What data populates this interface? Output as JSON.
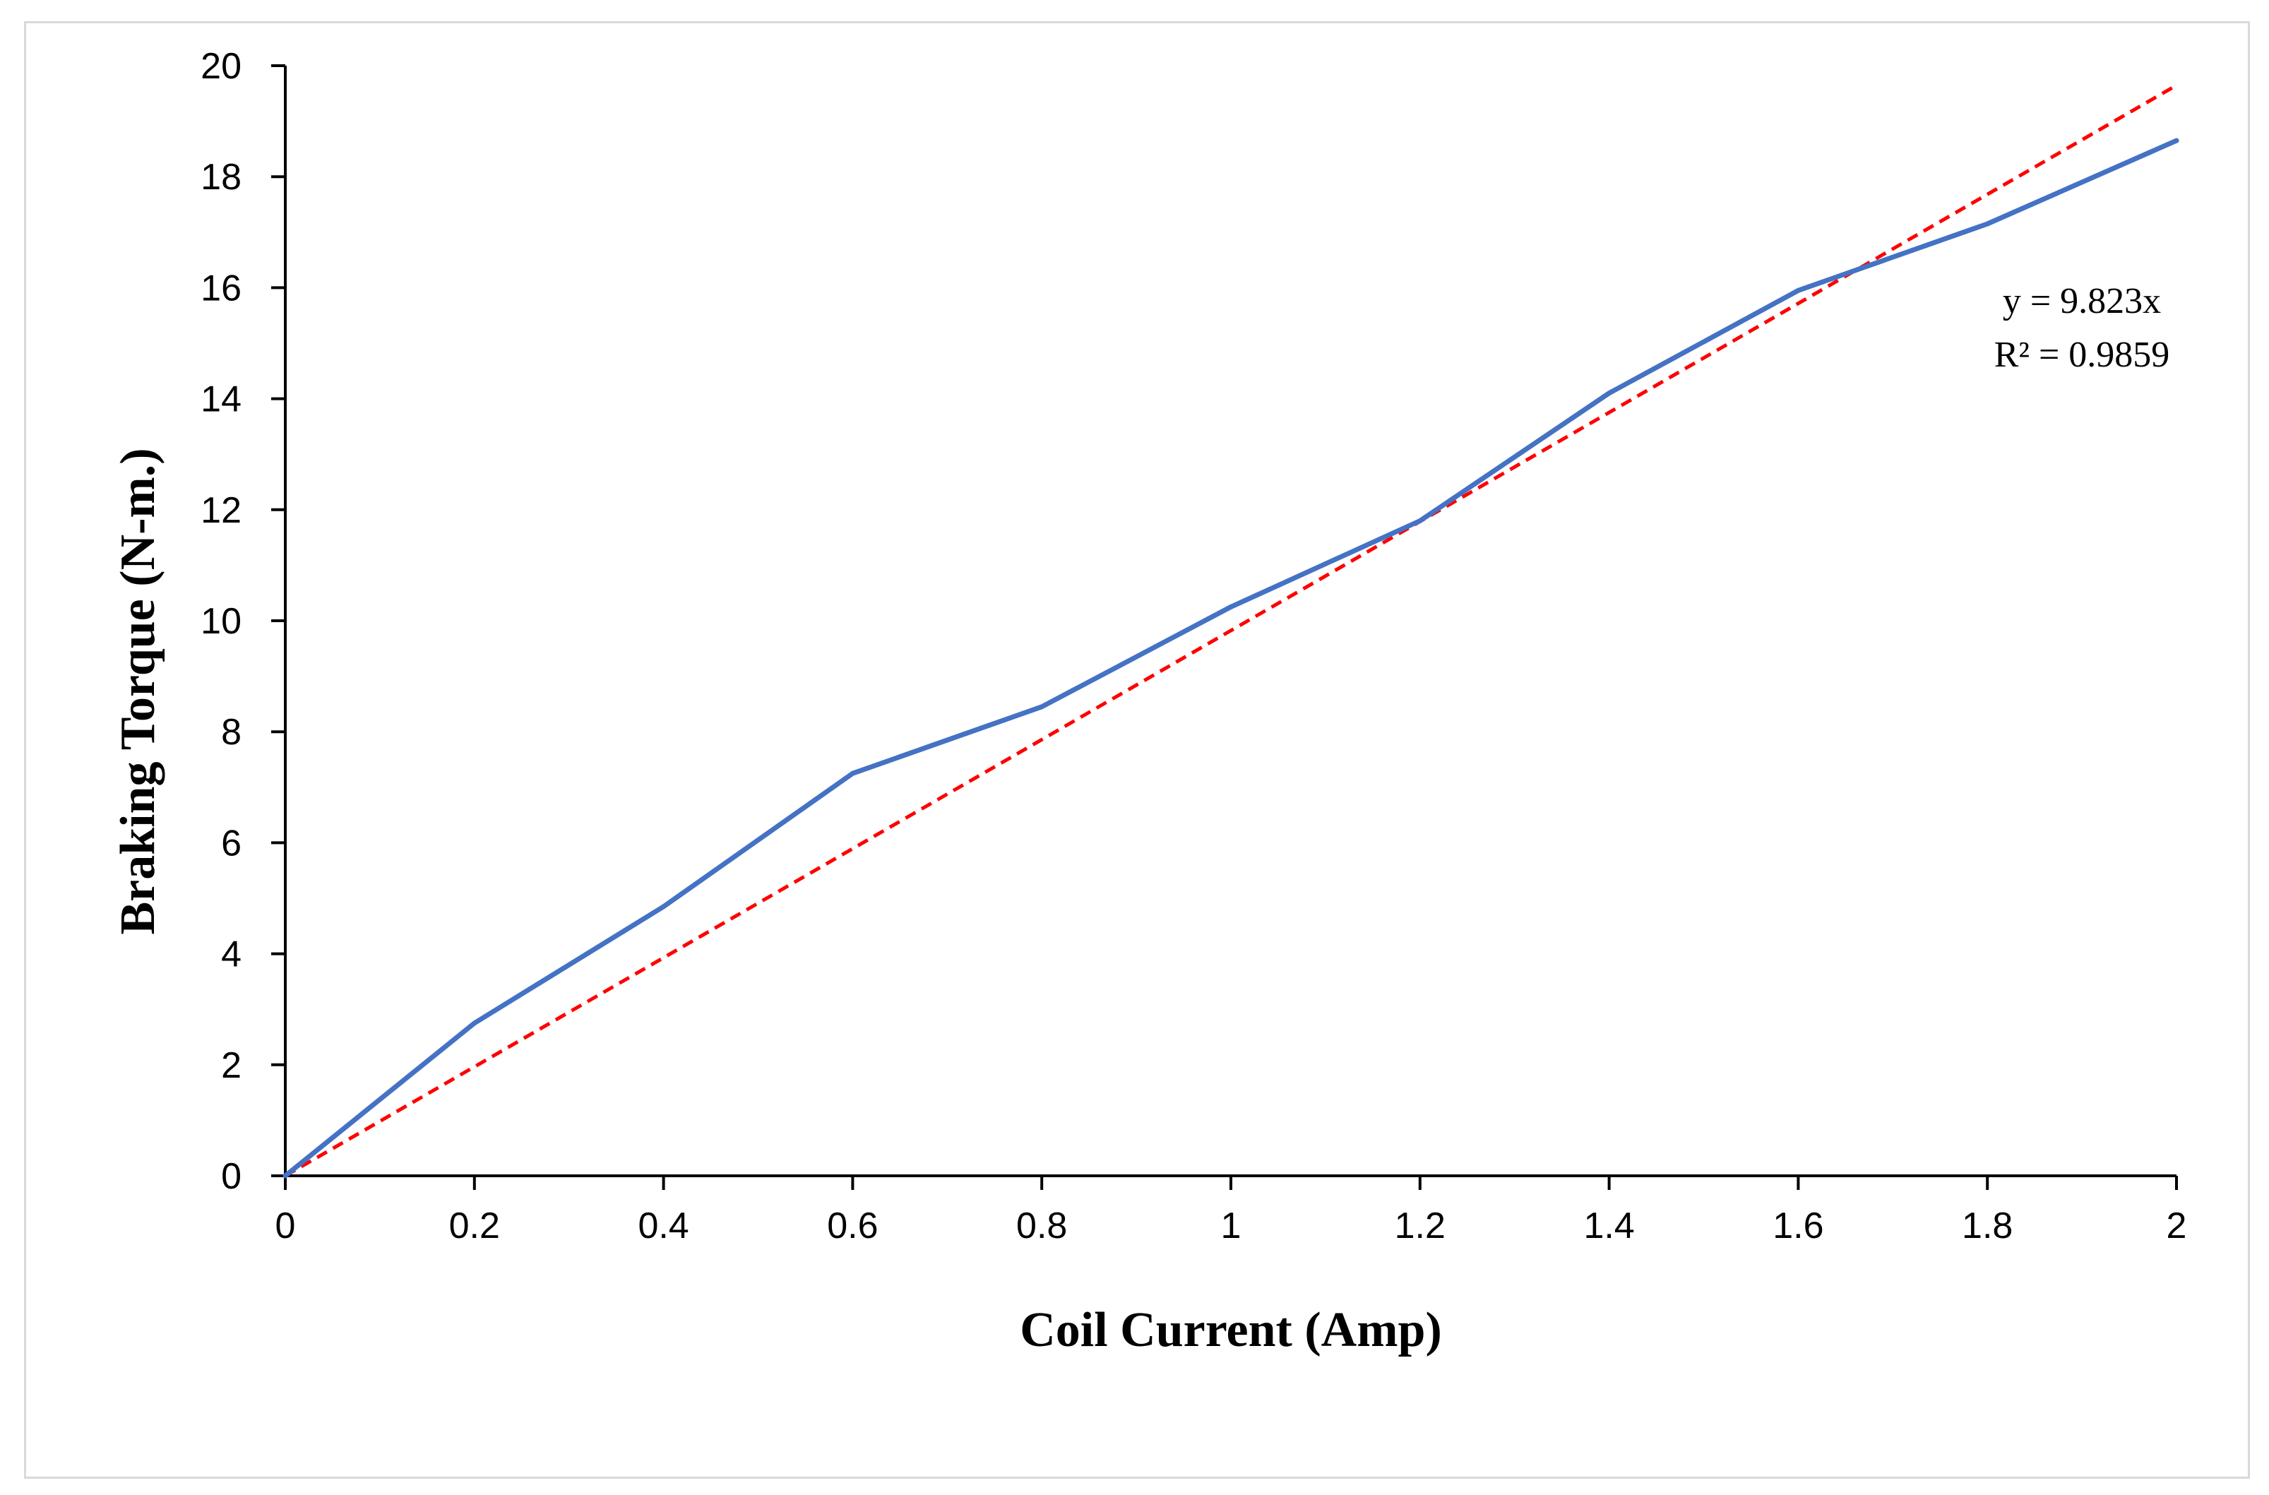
{
  "chart_data": {
    "type": "line",
    "title": "",
    "xlabel": "Coil Current (Amp)",
    "ylabel": "Braking Torque (N-m.)",
    "xlim": [
      0,
      2
    ],
    "ylim": [
      0,
      20
    ],
    "x_ticks": [
      0,
      0.2,
      0.4,
      0.6,
      0.8,
      1,
      1.2,
      1.4,
      1.6,
      1.8,
      2
    ],
    "x_tick_labels": [
      "0",
      "0.2",
      "0.4",
      "0.6",
      "0.8",
      "1",
      "1.2",
      "1.4",
      "1.6",
      "1.8",
      "2"
    ],
    "y_ticks": [
      0,
      2,
      4,
      6,
      8,
      10,
      12,
      14,
      16,
      18,
      20
    ],
    "y_tick_labels": [
      "0",
      "2",
      "4",
      "6",
      "8",
      "10",
      "12",
      "14",
      "16",
      "18",
      "20"
    ],
    "grid": false,
    "series": [
      {
        "name": "Braking Torque",
        "style": "solid",
        "color": "#4472C4",
        "x": [
          0,
          0.2,
          0.4,
          0.6,
          0.8,
          1,
          1.2,
          1.4,
          1.6,
          1.8,
          2
        ],
        "y": [
          0,
          2.75,
          4.85,
          7.25,
          8.45,
          10.25,
          11.8,
          14.1,
          15.95,
          17.15,
          18.65
        ]
      }
    ],
    "trendline": {
      "type": "linear",
      "color": "#FF0000",
      "style": "dashed",
      "slope": 9.823,
      "intercept": 0,
      "x_range": [
        0,
        2
      ],
      "equation": "y = 9.823x",
      "r_squared": "R² = 0.9859"
    }
  }
}
